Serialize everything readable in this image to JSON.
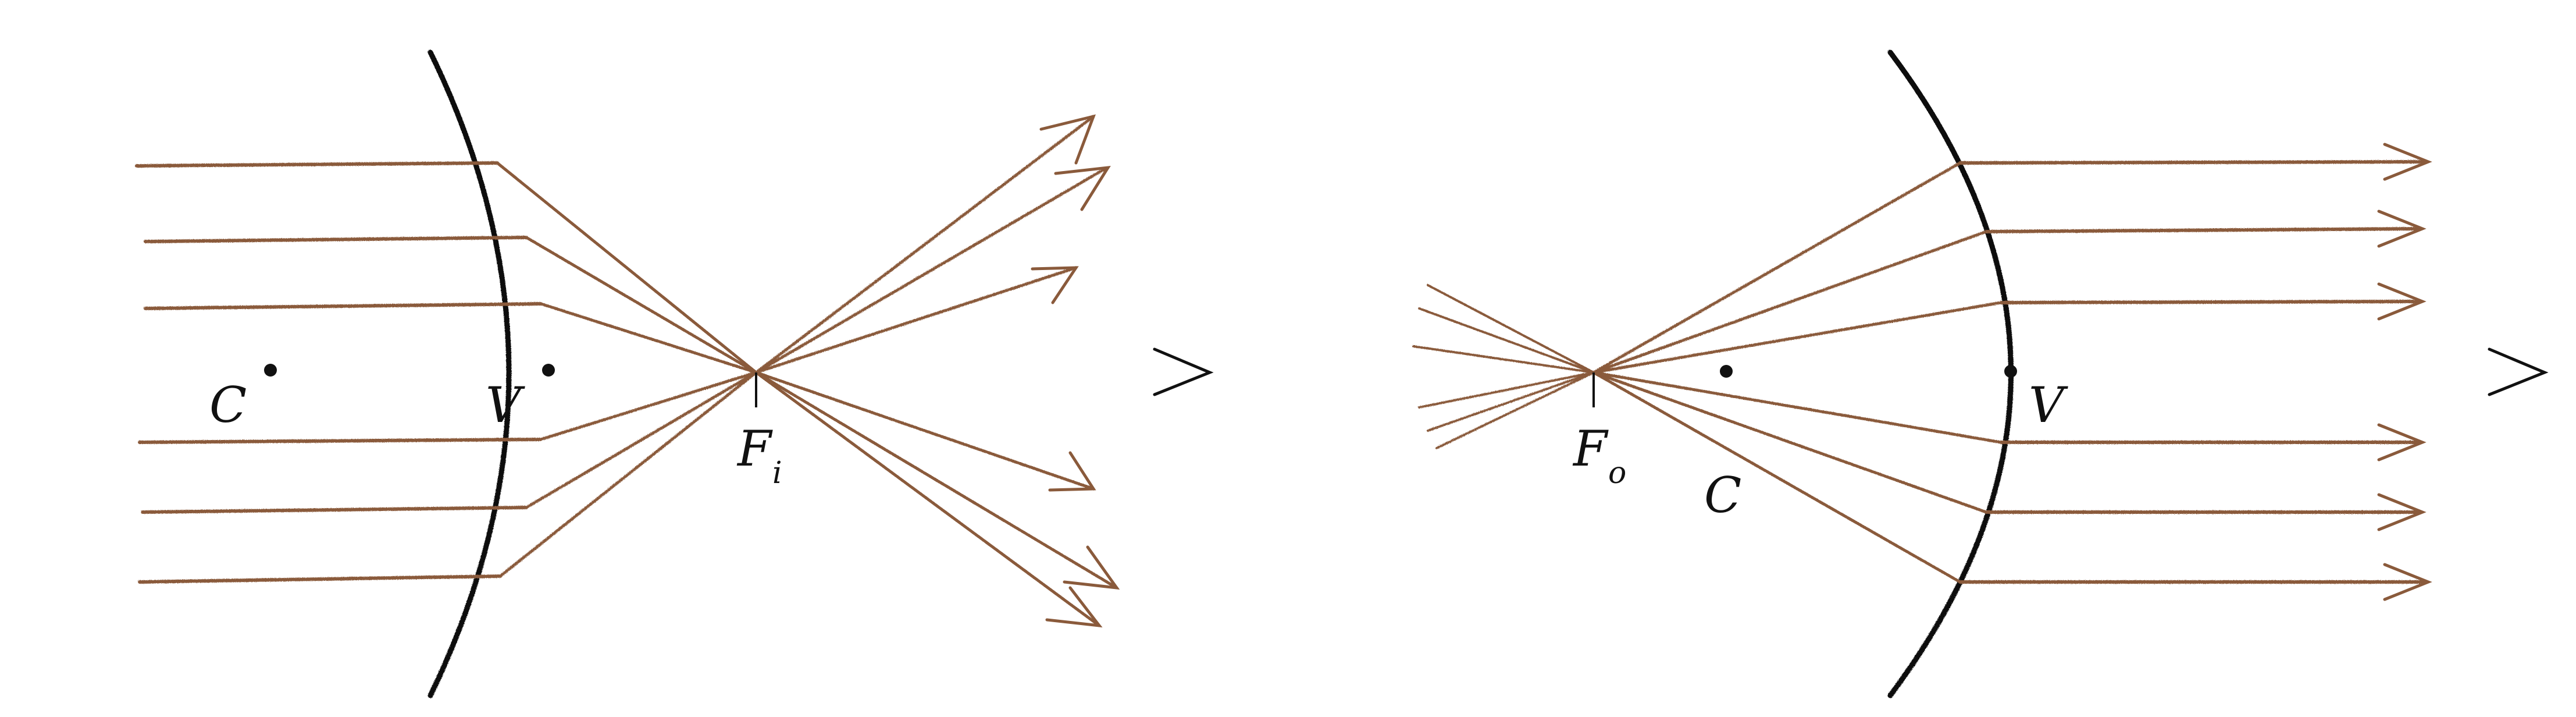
{
  "colors": {
    "ray": "#8a5a3b",
    "ink": "#111111",
    "background": "#ffffff"
  },
  "diagrams": [
    {
      "id": "converging-lens",
      "labels": {
        "center": "C",
        "vertex": "V",
        "focus_main": "F",
        "focus_sub": "i"
      }
    },
    {
      "id": "diverging-lens",
      "labels": {
        "center": "C",
        "vertex": "V",
        "focus_main": "F",
        "focus_sub": "o"
      }
    }
  ]
}
